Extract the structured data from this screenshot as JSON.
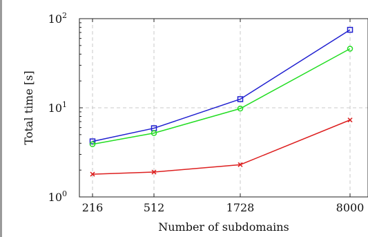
{
  "chart_data": {
    "type": "line",
    "title": "",
    "xlabel": "Number of subdomains",
    "ylabel": "Total time [s]",
    "x": [
      216,
      512,
      1728,
      8000
    ],
    "x_tick_labels": [
      "216",
      "512",
      "1728",
      "8000"
    ],
    "y_scale": "log",
    "ylim": [
      1,
      100
    ],
    "y_ticks": [
      {
        "base": "10",
        "exp": "0",
        "value": 1
      },
      {
        "base": "10",
        "exp": "1",
        "value": 10
      },
      {
        "base": "10",
        "exp": "2",
        "value": 100
      }
    ],
    "grid": true,
    "legend": "none",
    "series": [
      {
        "marker": "square",
        "color": "#1f1fd0",
        "values": [
          4.2,
          5.9,
          12.5,
          75
        ]
      },
      {
        "marker": "circle",
        "color": "#22dd22",
        "values": [
          3.9,
          5.2,
          9.8,
          46
        ]
      },
      {
        "marker": "cross",
        "color": "#dd1f1f",
        "values": [
          1.8,
          1.9,
          2.3,
          7.3
        ]
      }
    ]
  }
}
